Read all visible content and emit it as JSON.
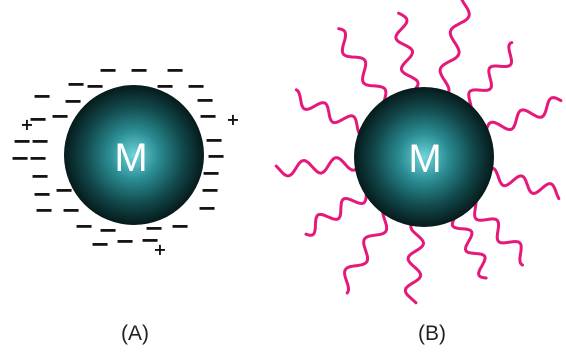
{
  "panels": [
    {
      "caption": "(A)",
      "particle_label": "M",
      "stabilization": "electrostatic",
      "surface_charges": "−",
      "counter_ions": "+"
    },
    {
      "caption": "(B)",
      "particle_label": "M",
      "stabilization": "steric",
      "polymer_chain_count": 13
    }
  ],
  "colors": {
    "particle_core": "#6fd6dc",
    "particle_mid": "#1f7378",
    "particle_edge": "#061a1b",
    "polymer_chains": "#e4197a",
    "charges": "#111111",
    "label_text": "#ffffff"
  }
}
